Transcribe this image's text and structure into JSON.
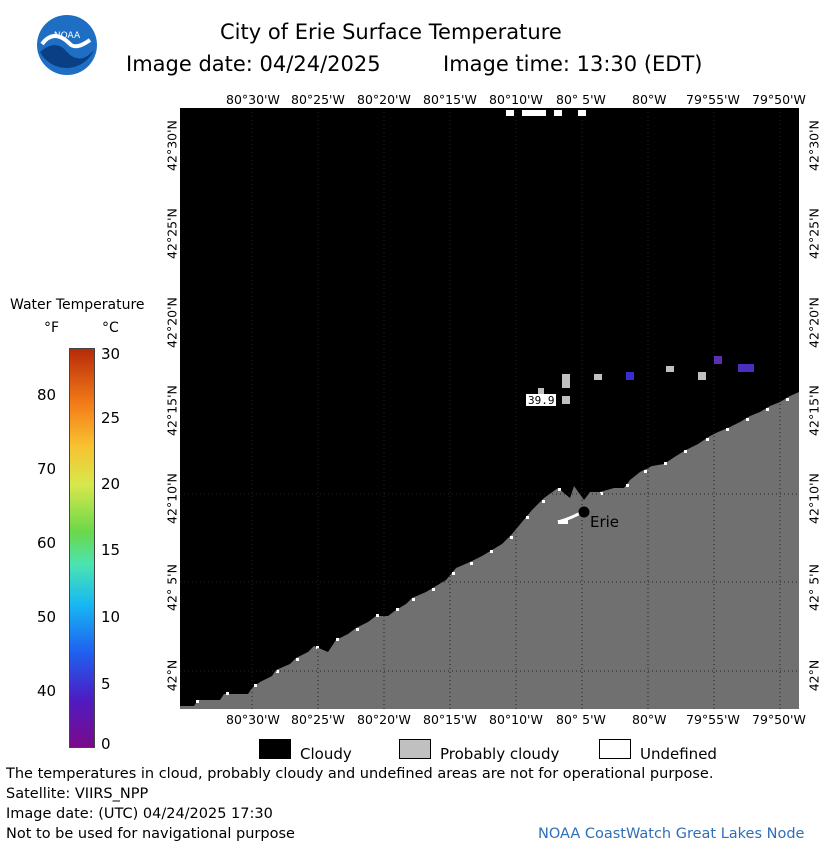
{
  "header": {
    "title": "City of Erie Surface Temperature",
    "image_date": "Image date: 04/24/2025",
    "image_time": "Image time: 13:30 (EDT)"
  },
  "logo": {
    "text": "NOAA"
  },
  "map": {
    "lon_labels": [
      "80°30'W",
      "80°25'W",
      "80°20'W",
      "80°15'W",
      "80°10'W",
      "80° 5'W",
      "80°W",
      "79°55'W",
      "79°50'W"
    ],
    "lat_labels": [
      "42°30'N",
      "42°25'N",
      "42°20'N",
      "42°15'N",
      "42°10'N",
      "42° 5'N",
      "42°N"
    ],
    "city_label": "Erie",
    "temp_reading": "39.9",
    "colors": {
      "cloudy": "#000000",
      "land": "#707070",
      "probably_cloudy": "#c0c0c0",
      "undefined": "#ffffff"
    }
  },
  "colorbar": {
    "title": "Water Temperature",
    "unit_f": "°F",
    "unit_c": "°C",
    "f_ticks": [
      "80",
      "70",
      "60",
      "50",
      "40"
    ],
    "c_ticks": [
      "30",
      "25",
      "20",
      "15",
      "10",
      "5",
      "0"
    ],
    "f_values": [
      80,
      70,
      60,
      50,
      40
    ],
    "c_values": [
      30,
      25,
      20,
      15,
      10,
      5,
      0
    ],
    "c_range": [
      0,
      30
    ]
  },
  "legend": {
    "cloudy": "Cloudy",
    "probably_cloudy": "Probably cloudy",
    "undefined": "Undefined"
  },
  "footer": {
    "note": "The temperatures in cloud, probably cloudy and undefined areas are not for operational purpose.",
    "satellite": "Satellite: VIIRS_NPP",
    "utc_date": "Image date: (UTC) 04/24/2025  17:30",
    "nav": "Not to be used for navigational purpose",
    "source": "NOAA CoastWatch Great Lakes Node"
  }
}
